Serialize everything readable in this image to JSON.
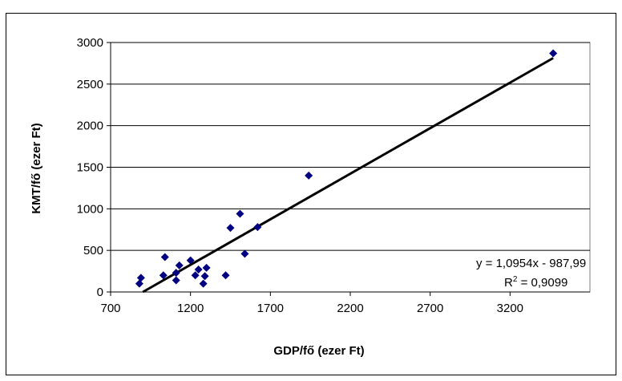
{
  "chart_data": {
    "type": "scatter",
    "title": "",
    "xlabel": "GDP/fő (ezer Ft)",
    "ylabel": "KMT/fő (ezer Ft)",
    "xlim": [
      700,
      3700
    ],
    "ylim": [
      0,
      3000
    ],
    "xticks": [
      "700",
      "1200",
      "1700",
      "2200",
      "2700",
      "3200"
    ],
    "yticks": [
      "0",
      "500",
      "1000",
      "1500",
      "2000",
      "2500",
      "3000"
    ],
    "grid": "horizontal",
    "legend": "none",
    "marker": "diamond",
    "marker_color": "#000080",
    "series": [
      {
        "x": [
          880,
          890,
          1030,
          1040,
          1110,
          1110,
          1130,
          1200,
          1230,
          1250,
          1280,
          1290,
          1300,
          1420,
          1450,
          1510,
          1540,
          1620,
          1940,
          3470
        ],
        "y": [
          100,
          170,
          200,
          420,
          140,
          230,
          320,
          380,
          200,
          270,
          100,
          190,
          290,
          200,
          770,
          940,
          460,
          780,
          1400,
          2870
        ]
      }
    ],
    "trendline": {
      "type": "linear",
      "slope": 1.0954,
      "intercept": -987.99,
      "x_range": [
        902,
        3470
      ],
      "equation": "y = 1,0954x - 987,99",
      "r2_label": "R",
      "r2_exp": "2",
      "r2_value": " = 0,9099",
      "color": "#000000"
    }
  }
}
